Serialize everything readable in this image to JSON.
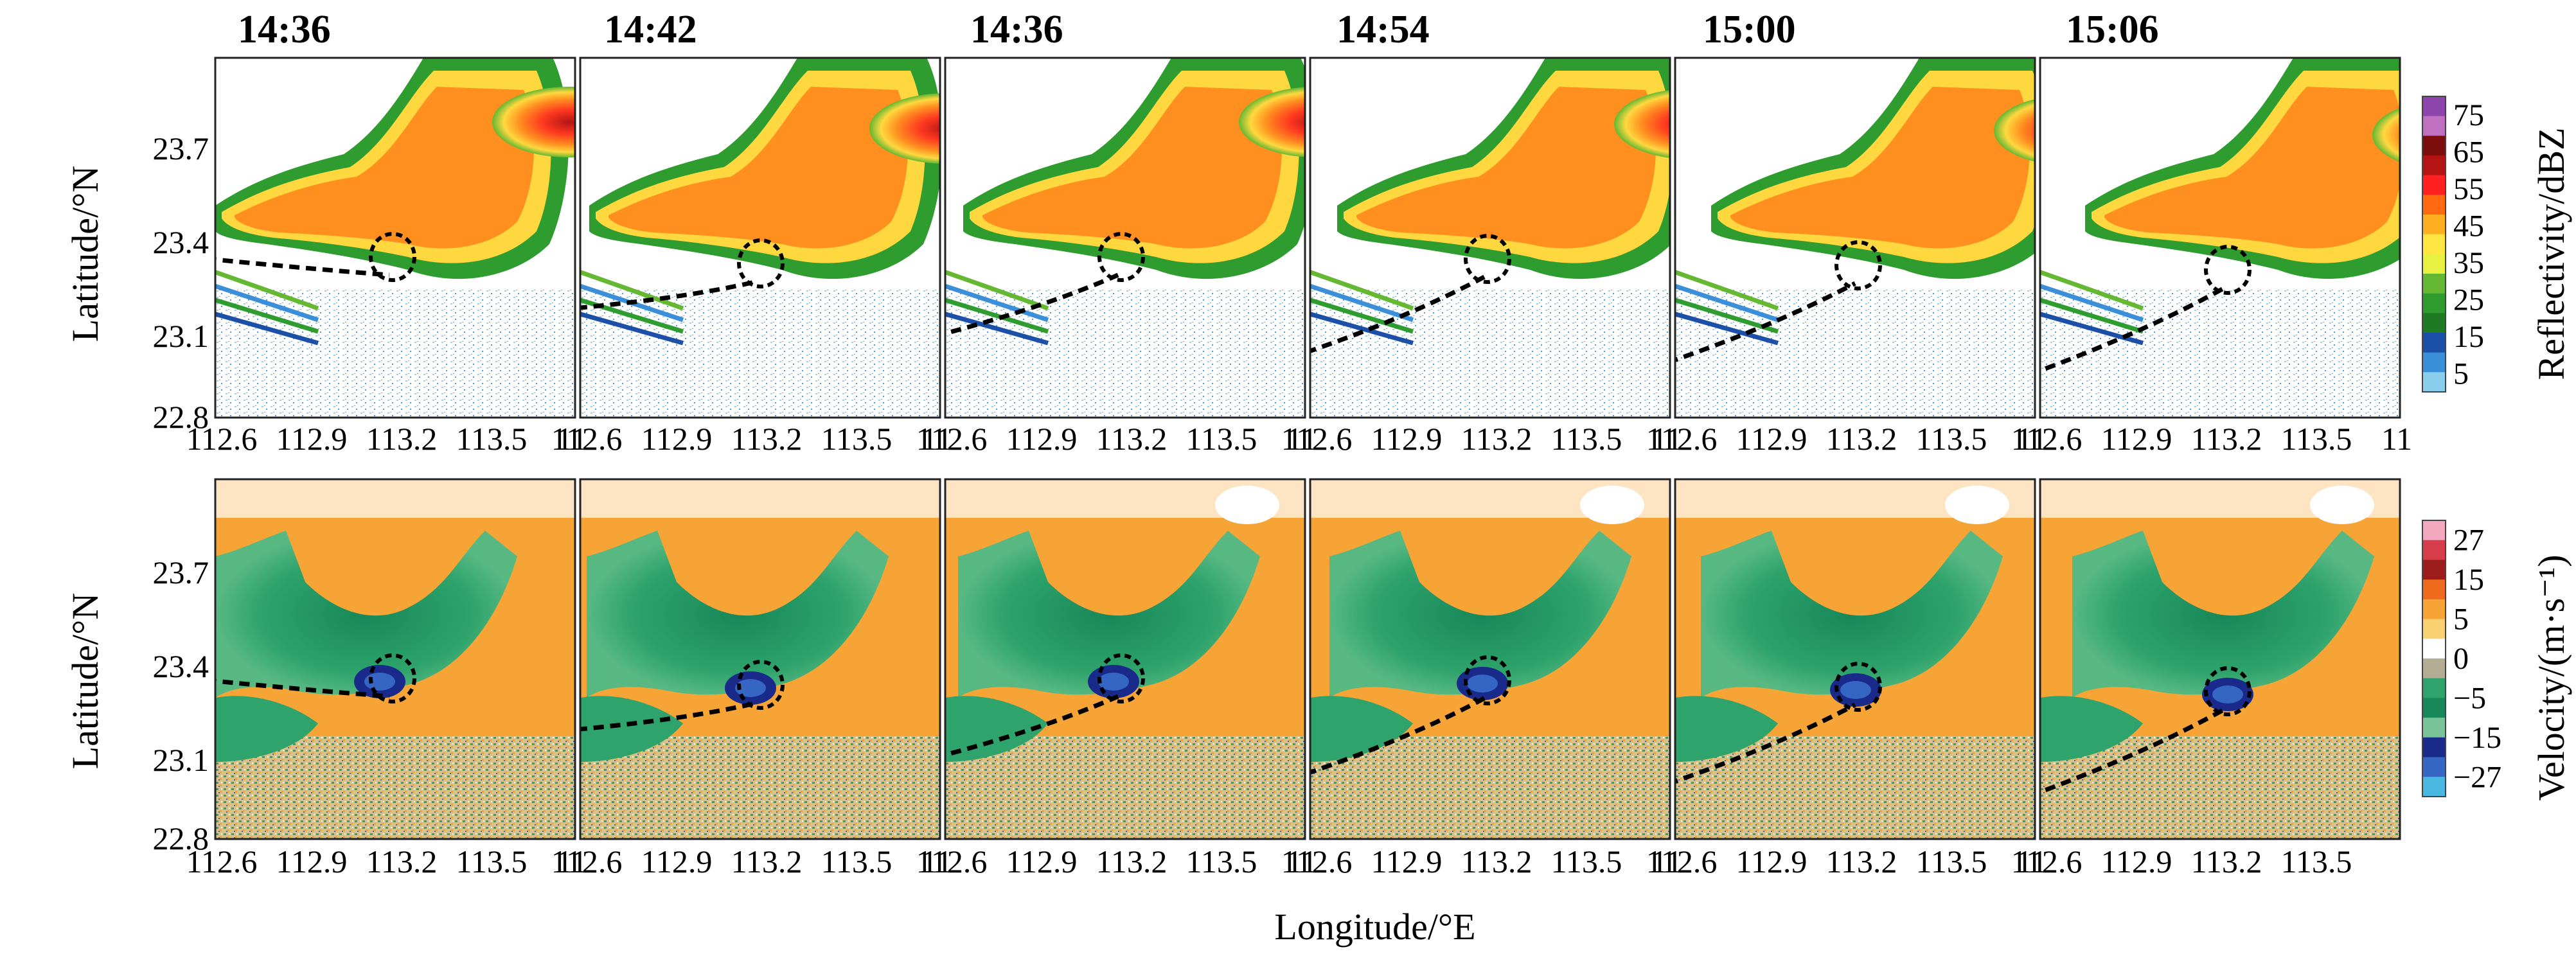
{
  "figure": {
    "time_labels": [
      "14:36",
      "14:42",
      "14:36",
      "14:54",
      "15:00",
      "15:06"
    ],
    "y_ticks": [
      "23.7",
      "23.4",
      "23.1",
      "22.8"
    ],
    "x_ticks": [
      "112.6",
      "112.9",
      "113.2",
      "113.5"
    ],
    "x_edge_tick": "11",
    "ylabel": "Latitude/°N",
    "xlabel": "Longitude/°E"
  },
  "reflectivity_colorbar": {
    "title": "Reflectivity/dBZ",
    "ticks": [
      "75",
      "65",
      "55",
      "45",
      "35",
      "25",
      "15",
      "5"
    ],
    "colors": [
      "#8e44ad",
      "#c070c0",
      "#7a0c0c",
      "#b51414",
      "#ff2020",
      "#ff6a10",
      "#ffb020",
      "#ffe640",
      "#e8f040",
      "#64b832",
      "#2e9c2e",
      "#1f7a24",
      "#1c4fa8",
      "#3a8fd8",
      "#8ad0ee"
    ]
  },
  "velocity_colorbar": {
    "title": "Velocity/(m·s⁻¹)",
    "ticks": [
      "27",
      "15",
      "5",
      "0",
      "−5",
      "−15",
      "−27"
    ],
    "colors": [
      "#f4a8c0",
      "#d63c4a",
      "#9c1c1c",
      "#f06a1e",
      "#f7a436",
      "#fbd070",
      "#ffffff",
      "#b3ad94",
      "#2ea36b",
      "#17885a",
      "#7bc49a",
      "#1a2a8a",
      "#3566c4",
      "#4ab8e2"
    ]
  },
  "panels": [
    {
      "time": "14:36",
      "x0": 243,
      "y0": 395,
      "cx": 611,
      "cy": 400
    },
    {
      "time": "14:42",
      "x0": 278,
      "y0": 484,
      "cx": 616,
      "cy": 410
    },
    {
      "time": "14:36",
      "x0": 218,
      "y0": 548,
      "cx": 609,
      "cy": 400
    },
    {
      "time": "14:54",
      "x0": 205,
      "y0": 588,
      "cx": 611,
      "cy": 403
    },
    {
      "time": "15:00",
      "x0": 200,
      "y0": 604,
      "cx": 620,
      "cy": 413
    },
    {
      "time": "15:06",
      "x0": 196,
      "y0": 625,
      "cx": 627,
      "cy": 420
    }
  ]
}
